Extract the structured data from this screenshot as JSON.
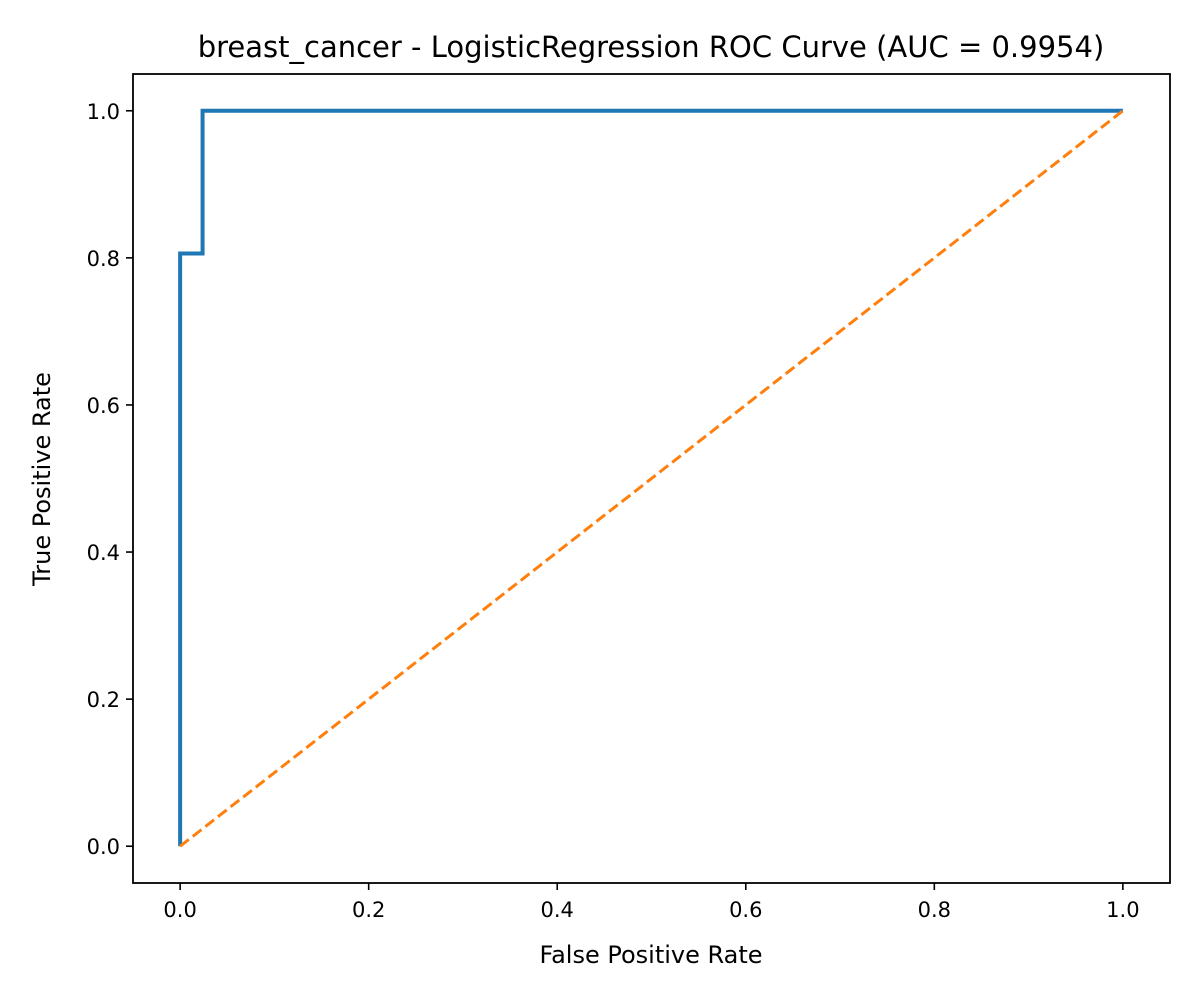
{
  "chart_data": {
    "type": "line",
    "title": "breast_cancer - LogisticRegression ROC Curve (AUC = 0.9954)",
    "xlabel": "False Positive Rate",
    "ylabel": "True Positive Rate",
    "xlim": [
      -0.05,
      1.05
    ],
    "ylim": [
      -0.05,
      1.05
    ],
    "xticks": [
      0.0,
      0.2,
      0.4,
      0.6,
      0.8,
      1.0
    ],
    "xtick_labels": [
      "0.0",
      "0.2",
      "0.4",
      "0.6",
      "0.8",
      "1.0"
    ],
    "yticks": [
      0.0,
      0.2,
      0.4,
      0.6,
      0.8,
      1.0
    ],
    "ytick_labels": [
      "0.0",
      "0.2",
      "0.4",
      "0.6",
      "0.8",
      "1.0"
    ],
    "grid": false,
    "series": [
      {
        "style": "solid",
        "color": "#1f77b4",
        "x": [
          0.0,
          0.0,
          0.0238,
          0.0238,
          1.0
        ],
        "y": [
          0.0,
          0.806,
          0.806,
          1.0,
          1.0
        ]
      },
      {
        "style": "dashed",
        "color": "#ff7f0e",
        "x": [
          0.0,
          1.0
        ],
        "y": [
          0.0,
          1.0
        ]
      }
    ]
  }
}
